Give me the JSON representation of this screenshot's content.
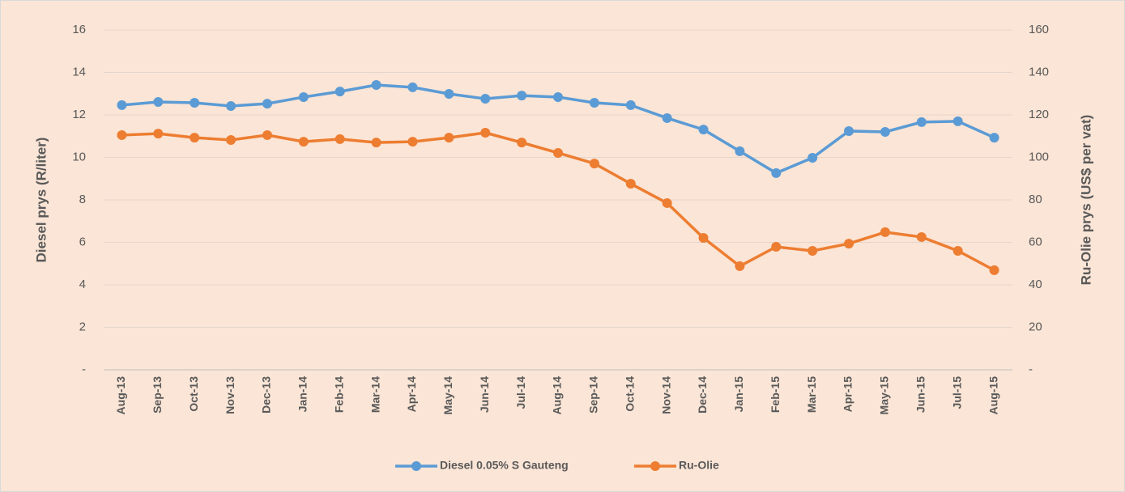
{
  "chart_data": {
    "type": "line",
    "categories": [
      "Aug-13",
      "Sep-13",
      "Oct-13",
      "Nov-13",
      "Dec-13",
      "Jan-14",
      "Feb-14",
      "Mar-14",
      "Apr-14",
      "May-14",
      "Jun-14",
      "Jul-14",
      "Aug-14",
      "Sep-14",
      "Oct-14",
      "Nov-14",
      "Dec-14",
      "Jan-15",
      "Feb-15",
      "Mar-15",
      "Apr-15",
      "May-15",
      "Jun-15",
      "Jul-15",
      "Aug-15"
    ],
    "series": [
      {
        "name": "Diesel 0.05% S Gauteng",
        "color": "#5b9bd5",
        "axis": "y",
        "values": [
          12.46,
          12.61,
          12.57,
          12.42,
          12.53,
          12.84,
          13.1,
          13.41,
          13.3,
          12.99,
          12.76,
          12.91,
          12.84,
          12.57,
          12.46,
          11.85,
          11.31,
          10.29,
          9.26,
          9.98,
          11.24,
          11.2,
          11.66,
          11.7,
          10.93
        ]
      },
      {
        "name": "Ru-Olie",
        "color": "#ed7d31",
        "axis": "y2",
        "values": [
          110.5,
          111.2,
          109.3,
          108.2,
          110.5,
          107.4,
          108.6,
          107,
          107.4,
          109.3,
          111.6,
          107,
          102.1,
          97.1,
          87.6,
          78.5,
          62.1,
          48.8,
          57.9,
          56,
          59.4,
          64.8,
          62.5,
          56,
          46.9
        ]
      }
    ],
    "ylabel": "Diesel prys (R/liter)",
    "y2label": "Ru-Olie  prys (US$ per vat)",
    "ylim": [
      0,
      16
    ],
    "yticks": [
      {
        "value": 0,
        "label": "-"
      },
      2,
      4,
      6,
      8,
      10,
      12,
      14,
      16
    ],
    "y2lim": [
      0,
      160
    ],
    "y2ticks": [
      {
        "value": 0,
        "label": "-"
      },
      20,
      40,
      60,
      80,
      100,
      120,
      140,
      160
    ],
    "grid": true,
    "legend": "bottom"
  }
}
